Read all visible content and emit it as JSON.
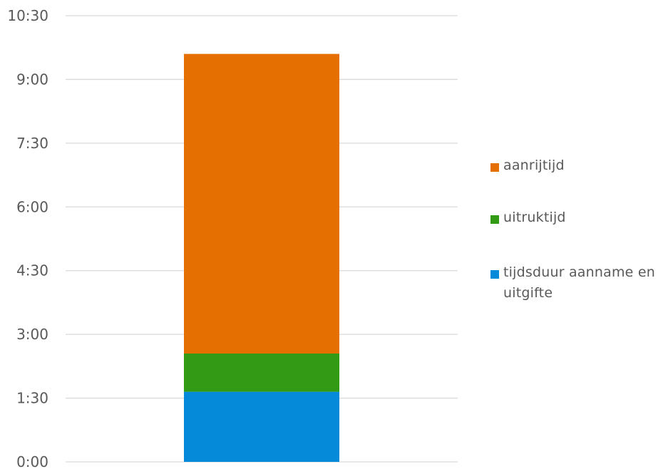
{
  "chart_data": {
    "type": "bar",
    "stacked": true,
    "categories": [
      ""
    ],
    "series": [
      {
        "name": "tijdsduur aanname en uitgifte",
        "values": [
          1.65
        ],
        "color": "#0589D9"
      },
      {
        "name": "uitruktijd",
        "values": [
          0.9
        ],
        "color": "#329A14"
      },
      {
        "name": "aanrijtijd",
        "values": [
          7.05
        ],
        "color": "#E56F00"
      }
    ],
    "yticks": [
      {
        "value": 0,
        "label": "0:00"
      },
      {
        "value": 1.5,
        "label": "1:30"
      },
      {
        "value": 3,
        "label": "3:00"
      },
      {
        "value": 4.5,
        "label": "4:30"
      },
      {
        "value": 6,
        "label": "6:00"
      },
      {
        "value": 7.5,
        "label": "7:30"
      },
      {
        "value": 9,
        "label": "9:00"
      },
      {
        "value": 10.5,
        "label": "10:30"
      }
    ],
    "ylim": [
      0,
      10.5
    ],
    "ylabel": "",
    "xlabel": "",
    "grid": true,
    "legend_position": "right",
    "legend_order": [
      "aanrijtijd",
      "uitruktijd",
      "tijdsduur aanname en uitgifte"
    ]
  }
}
